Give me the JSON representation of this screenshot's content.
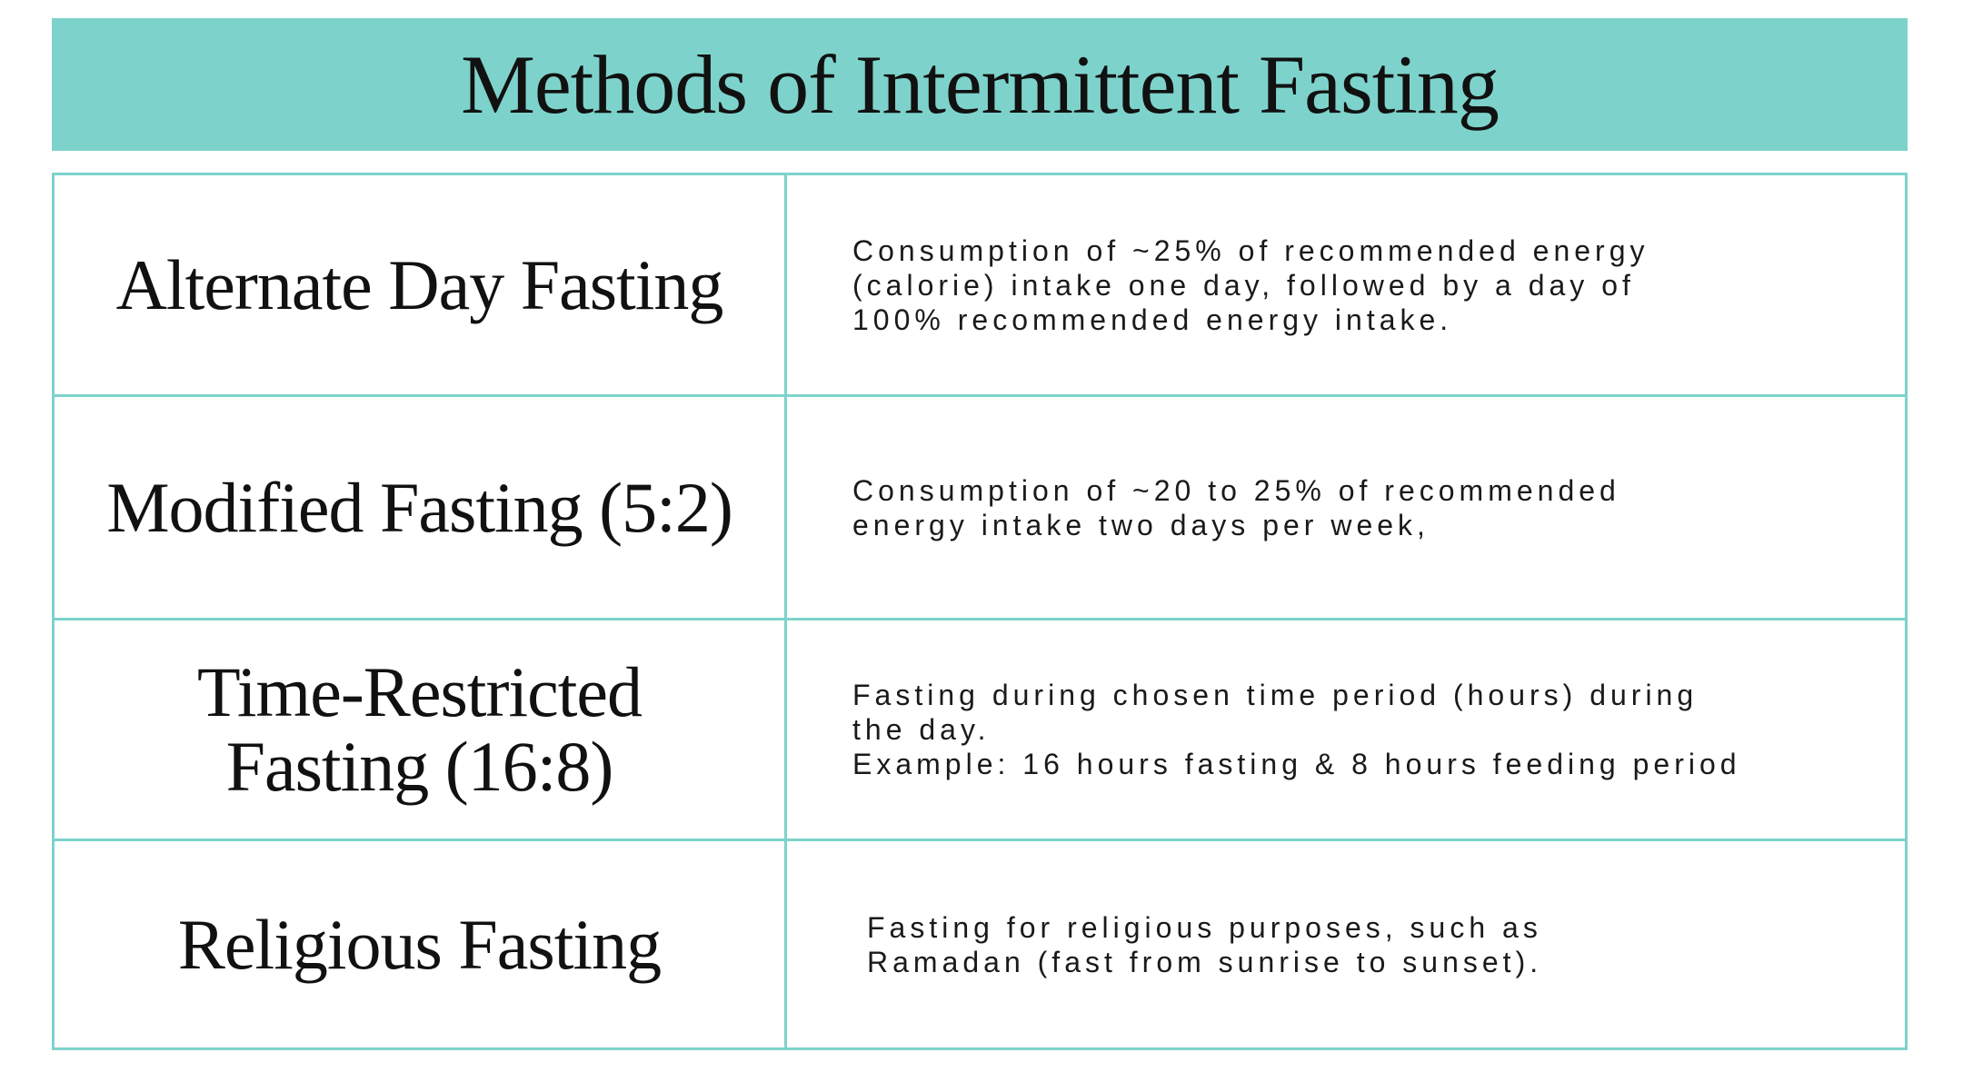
{
  "title": "Methods of Intermittent Fasting",
  "colors": {
    "accent": "#7dd3cb",
    "text": "#111111"
  },
  "rows": [
    {
      "method": "Alternate Day Fasting",
      "description": "Consumption of ~25% of recommended energy\n(calorie) intake one day, followed by a day of\n100% recommended energy intake."
    },
    {
      "method": "Modified Fasting (5:2)",
      "description": "Consumption of ~20 to 25% of recommended\nenergy intake two days per week,"
    },
    {
      "method": "Time-Restricted\nFasting (16:8)",
      "description": "Fasting during chosen time period (hours) during\nthe day.\nExample: 16 hours fasting & 8 hours feeding period"
    },
    {
      "method": "Religious Fasting",
      "description": "Fasting for religious purposes, such as\nRamadan (fast from sunrise to sunset)."
    }
  ]
}
